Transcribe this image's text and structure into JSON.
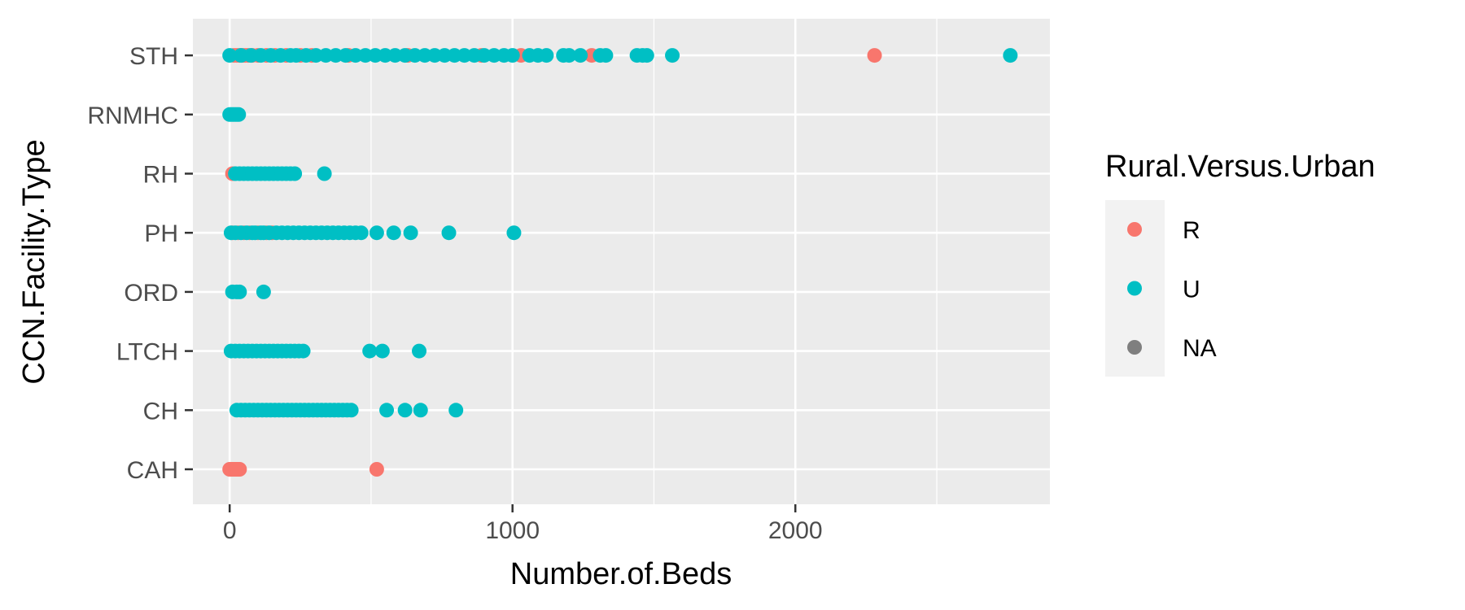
{
  "chart_data": {
    "type": "scatter",
    "title": "",
    "xlabel": "Number.of.Beds",
    "ylabel": "CCN.Facility.Type",
    "xlim": [
      -130,
      2900
    ],
    "x_ticks": [
      0,
      1000,
      2000
    ],
    "x_tick_labels": [
      "0",
      "1000",
      "2000"
    ],
    "categories": [
      "CAH",
      "CH",
      "LTCH",
      "ORD",
      "PH",
      "RH",
      "RNMHC",
      "STH"
    ],
    "grid": true,
    "legend": {
      "title": "Rural.Versus.Urban",
      "placement": "right",
      "entries": [
        {
          "label": "R",
          "color": "#F8766D"
        },
        {
          "label": "U",
          "color": "#00BFC4"
        },
        {
          "label": "NA",
          "color": "#7F7F7F"
        }
      ]
    },
    "series": [
      {
        "key": "R",
        "color": "#F8766D",
        "points": [
          {
            "y": "CAH",
            "x": 0
          },
          {
            "y": "CAH",
            "x": 5
          },
          {
            "y": "CAH",
            "x": 10
          },
          {
            "y": "CAH",
            "x": 15
          },
          {
            "y": "CAH",
            "x": 20
          },
          {
            "y": "CAH",
            "x": 25
          },
          {
            "y": "CAH",
            "x": 30
          },
          {
            "y": "CAH",
            "x": 35
          },
          {
            "y": "CAH",
            "x": 520
          },
          {
            "y": "PH",
            "x": 10
          },
          {
            "y": "PH",
            "x": 30
          },
          {
            "y": "PH",
            "x": 50
          },
          {
            "y": "PH",
            "x": 70
          },
          {
            "y": "PH",
            "x": 100
          },
          {
            "y": "PH",
            "x": 130
          },
          {
            "y": "PH",
            "x": 150
          },
          {
            "y": "RH",
            "x": 10
          },
          {
            "y": "STH",
            "x": 15
          },
          {
            "y": "STH",
            "x": 25
          },
          {
            "y": "STH",
            "x": 35
          },
          {
            "y": "STH",
            "x": 45
          },
          {
            "y": "STH",
            "x": 55
          },
          {
            "y": "STH",
            "x": 65
          },
          {
            "y": "STH",
            "x": 80
          },
          {
            "y": "STH",
            "x": 100
          },
          {
            "y": "STH",
            "x": 130
          },
          {
            "y": "STH",
            "x": 160
          },
          {
            "y": "STH",
            "x": 200
          },
          {
            "y": "STH",
            "x": 250
          },
          {
            "y": "STH",
            "x": 290
          },
          {
            "y": "STH",
            "x": 420
          },
          {
            "y": "STH",
            "x": 630
          },
          {
            "y": "STH",
            "x": 890
          },
          {
            "y": "STH",
            "x": 1030
          },
          {
            "y": "STH",
            "x": 1280
          },
          {
            "y": "STH",
            "x": 2280
          }
        ]
      },
      {
        "key": "U",
        "color": "#00BFC4",
        "points": [
          {
            "y": "CH",
            "x": 25
          },
          {
            "y": "CH",
            "x": 40
          },
          {
            "y": "CH",
            "x": 55
          },
          {
            "y": "CH",
            "x": 70
          },
          {
            "y": "CH",
            "x": 85
          },
          {
            "y": "CH",
            "x": 100
          },
          {
            "y": "CH",
            "x": 115
          },
          {
            "y": "CH",
            "x": 130
          },
          {
            "y": "CH",
            "x": 145
          },
          {
            "y": "CH",
            "x": 160
          },
          {
            "y": "CH",
            "x": 175
          },
          {
            "y": "CH",
            "x": 190
          },
          {
            "y": "CH",
            "x": 205
          },
          {
            "y": "CH",
            "x": 220
          },
          {
            "y": "CH",
            "x": 235
          },
          {
            "y": "CH",
            "x": 250
          },
          {
            "y": "CH",
            "x": 265
          },
          {
            "y": "CH",
            "x": 280
          },
          {
            "y": "CH",
            "x": 295
          },
          {
            "y": "CH",
            "x": 310
          },
          {
            "y": "CH",
            "x": 325
          },
          {
            "y": "CH",
            "x": 340
          },
          {
            "y": "CH",
            "x": 355
          },
          {
            "y": "CH",
            "x": 370
          },
          {
            "y": "CH",
            "x": 385
          },
          {
            "y": "CH",
            "x": 400
          },
          {
            "y": "CH",
            "x": 415
          },
          {
            "y": "CH",
            "x": 430
          },
          {
            "y": "CH",
            "x": 555
          },
          {
            "y": "CH",
            "x": 620
          },
          {
            "y": "CH",
            "x": 675
          },
          {
            "y": "CH",
            "x": 800
          },
          {
            "y": "LTCH",
            "x": 5
          },
          {
            "y": "LTCH",
            "x": 20
          },
          {
            "y": "LTCH",
            "x": 35
          },
          {
            "y": "LTCH",
            "x": 50
          },
          {
            "y": "LTCH",
            "x": 65
          },
          {
            "y": "LTCH",
            "x": 80
          },
          {
            "y": "LTCH",
            "x": 95
          },
          {
            "y": "LTCH",
            "x": 110
          },
          {
            "y": "LTCH",
            "x": 125
          },
          {
            "y": "LTCH",
            "x": 140
          },
          {
            "y": "LTCH",
            "x": 155
          },
          {
            "y": "LTCH",
            "x": 170
          },
          {
            "y": "LTCH",
            "x": 185
          },
          {
            "y": "LTCH",
            "x": 200
          },
          {
            "y": "LTCH",
            "x": 215
          },
          {
            "y": "LTCH",
            "x": 230
          },
          {
            "y": "LTCH",
            "x": 245
          },
          {
            "y": "LTCH",
            "x": 260
          },
          {
            "y": "LTCH",
            "x": 495
          },
          {
            "y": "LTCH",
            "x": 540
          },
          {
            "y": "LTCH",
            "x": 670
          },
          {
            "y": "ORD",
            "x": 10
          },
          {
            "y": "ORD",
            "x": 25
          },
          {
            "y": "ORD",
            "x": 35
          },
          {
            "y": "ORD",
            "x": 120
          },
          {
            "y": "PH",
            "x": 5
          },
          {
            "y": "PH",
            "x": 20
          },
          {
            "y": "PH",
            "x": 40
          },
          {
            "y": "PH",
            "x": 60
          },
          {
            "y": "PH",
            "x": 80
          },
          {
            "y": "PH",
            "x": 90
          },
          {
            "y": "PH",
            "x": 110
          },
          {
            "y": "PH",
            "x": 120
          },
          {
            "y": "PH",
            "x": 140
          },
          {
            "y": "PH",
            "x": 165
          },
          {
            "y": "PH",
            "x": 185
          },
          {
            "y": "PH",
            "x": 205
          },
          {
            "y": "PH",
            "x": 225
          },
          {
            "y": "PH",
            "x": 245
          },
          {
            "y": "PH",
            "x": 265
          },
          {
            "y": "PH",
            "x": 285
          },
          {
            "y": "PH",
            "x": 305
          },
          {
            "y": "PH",
            "x": 325
          },
          {
            "y": "PH",
            "x": 345
          },
          {
            "y": "PH",
            "x": 365
          },
          {
            "y": "PH",
            "x": 385
          },
          {
            "y": "PH",
            "x": 405
          },
          {
            "y": "PH",
            "x": 425
          },
          {
            "y": "PH",
            "x": 445
          },
          {
            "y": "PH",
            "x": 465
          },
          {
            "y": "PH",
            "x": 520
          },
          {
            "y": "PH",
            "x": 580
          },
          {
            "y": "PH",
            "x": 640
          },
          {
            "y": "PH",
            "x": 775
          },
          {
            "y": "PH",
            "x": 1005
          },
          {
            "y": "RH",
            "x": 20
          },
          {
            "y": "RH",
            "x": 35
          },
          {
            "y": "RH",
            "x": 50
          },
          {
            "y": "RH",
            "x": 65
          },
          {
            "y": "RH",
            "x": 80
          },
          {
            "y": "RH",
            "x": 95
          },
          {
            "y": "RH",
            "x": 110
          },
          {
            "y": "RH",
            "x": 125
          },
          {
            "y": "RH",
            "x": 140
          },
          {
            "y": "RH",
            "x": 155
          },
          {
            "y": "RH",
            "x": 170
          },
          {
            "y": "RH",
            "x": 185
          },
          {
            "y": "RH",
            "x": 200
          },
          {
            "y": "RH",
            "x": 215
          },
          {
            "y": "RH",
            "x": 230
          },
          {
            "y": "RH",
            "x": 335
          },
          {
            "y": "RNMHC",
            "x": 0
          },
          {
            "y": "RNMHC",
            "x": 8
          },
          {
            "y": "RNMHC",
            "x": 16
          },
          {
            "y": "RNMHC",
            "x": 24
          },
          {
            "y": "RNMHC",
            "x": 32
          },
          {
            "y": "STH",
            "x": 0
          },
          {
            "y": "STH",
            "x": 40
          },
          {
            "y": "STH",
            "x": 75
          },
          {
            "y": "STH",
            "x": 110
          },
          {
            "y": "STH",
            "x": 145
          },
          {
            "y": "STH",
            "x": 180
          },
          {
            "y": "STH",
            "x": 215
          },
          {
            "y": "STH",
            "x": 235
          },
          {
            "y": "STH",
            "x": 270
          },
          {
            "y": "STH",
            "x": 305
          },
          {
            "y": "STH",
            "x": 340
          },
          {
            "y": "STH",
            "x": 375
          },
          {
            "y": "STH",
            "x": 410
          },
          {
            "y": "STH",
            "x": 445
          },
          {
            "y": "STH",
            "x": 480
          },
          {
            "y": "STH",
            "x": 515
          },
          {
            "y": "STH",
            "x": 550
          },
          {
            "y": "STH",
            "x": 585
          },
          {
            "y": "STH",
            "x": 620
          },
          {
            "y": "STH",
            "x": 655
          },
          {
            "y": "STH",
            "x": 690
          },
          {
            "y": "STH",
            "x": 725
          },
          {
            "y": "STH",
            "x": 760
          },
          {
            "y": "STH",
            "x": 795
          },
          {
            "y": "STH",
            "x": 830
          },
          {
            "y": "STH",
            "x": 865
          },
          {
            "y": "STH",
            "x": 900
          },
          {
            "y": "STH",
            "x": 935
          },
          {
            "y": "STH",
            "x": 970
          },
          {
            "y": "STH",
            "x": 1000
          },
          {
            "y": "STH",
            "x": 1060
          },
          {
            "y": "STH",
            "x": 1090
          },
          {
            "y": "STH",
            "x": 1120
          },
          {
            "y": "STH",
            "x": 1180
          },
          {
            "y": "STH",
            "x": 1200
          },
          {
            "y": "STH",
            "x": 1240
          },
          {
            "y": "STH",
            "x": 1310
          },
          {
            "y": "STH",
            "x": 1330
          },
          {
            "y": "STH",
            "x": 1440
          },
          {
            "y": "STH",
            "x": 1460
          },
          {
            "y": "STH",
            "x": 1475
          },
          {
            "y": "STH",
            "x": 1565
          },
          {
            "y": "STH",
            "x": 2760
          }
        ]
      }
    ]
  }
}
